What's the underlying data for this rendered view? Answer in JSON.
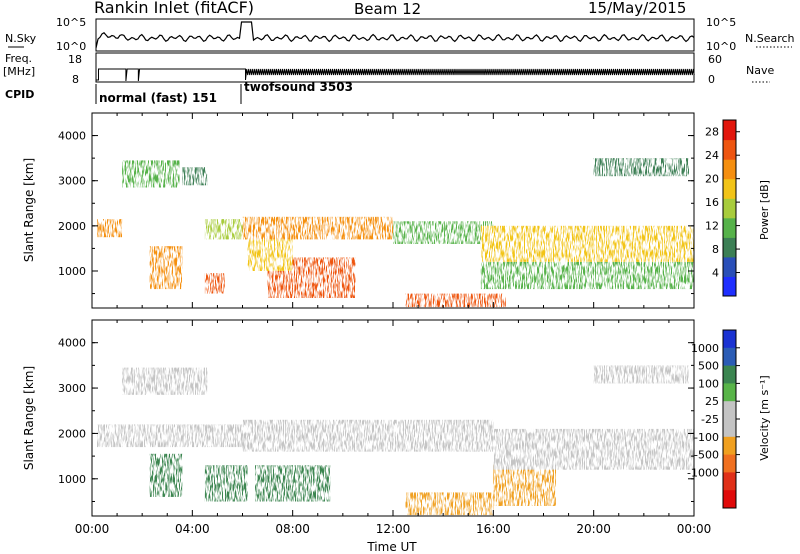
{
  "header": {
    "station": "Rankin Inlet (fitACF)",
    "beam": "Beam 12",
    "date": "15/May/2015"
  },
  "strip_labels": {
    "nsky": "N.Sky",
    "nsearch": "N.Search",
    "freq": "Freq.",
    "freq_unit": "[MHz]",
    "nave": "Nave",
    "cpid": "CPID",
    "nsky_ticks": [
      "10^5",
      "10^0"
    ],
    "nsearch_ticks": [
      "10^5",
      "10^0"
    ],
    "freq_ticks": [
      "18",
      "8"
    ],
    "nave_ticks": [
      "60",
      "0"
    ]
  },
  "modes": [
    {
      "name": "normal (fast) 151",
      "start_hour": 0
    },
    {
      "name": "twofsound 3503",
      "start_hour": 6
    }
  ],
  "colors": {
    "power_scale": [
      "#1f2fff",
      "#2a4fb8",
      "#3c7f55",
      "#56b24a",
      "#a8cc3c",
      "#f2c418",
      "#f58f10",
      "#ee5510",
      "#e2160c"
    ],
    "velocity_scale": [
      "#1a32d2",
      "#2b5cb5",
      "#3b8550",
      "#58b448",
      "#c4c4c4",
      "#c4c4c4",
      "#f0a020",
      "#f07020",
      "#e03018",
      "#e00a0a"
    ],
    "accent_black": "#000000"
  },
  "chart_data": [
    {
      "type": "heatmap",
      "panel": "power",
      "xlabel": "",
      "ylabel": "Slant Range [km]",
      "xlim": [
        0,
        24
      ],
      "ylim": [
        180,
        4500
      ],
      "yticks": [
        "1000",
        "2000",
        "3000",
        "4000"
      ],
      "colorbar_label": "Power [dB]",
      "colorbar_ticks": [
        "4",
        "8",
        "12",
        "16",
        "20",
        "24",
        "28"
      ],
      "colorbar_range": [
        0,
        30
      ],
      "bands": [
        {
          "x": [
            0.2,
            1.2
          ],
          "y": [
            1750,
            2150
          ],
          "value": 20
        },
        {
          "x": [
            2.3,
            3.6
          ],
          "y": [
            600,
            1550
          ],
          "value": 22
        },
        {
          "x": [
            1.2,
            3.5
          ],
          "y": [
            2850,
            3450
          ],
          "value": 10
        },
        {
          "x": [
            3.6,
            4.6
          ],
          "y": [
            2900,
            3300
          ],
          "value": 9
        },
        {
          "x": [
            4.5,
            6.2
          ],
          "y": [
            1700,
            2150
          ],
          "value": 14
        },
        {
          "x": [
            4.5,
            5.3
          ],
          "y": [
            500,
            950
          ],
          "value": 26
        },
        {
          "x": [
            6.0,
            12.0
          ],
          "y": [
            1700,
            2200
          ],
          "value": 21
        },
        {
          "x": [
            7.0,
            10.5
          ],
          "y": [
            400,
            1300
          ],
          "value": 25
        },
        {
          "x": [
            6.2,
            8.0
          ],
          "y": [
            1000,
            1700
          ],
          "value": 18
        },
        {
          "x": [
            12.0,
            16.0
          ],
          "y": [
            1600,
            2100
          ],
          "value": 10
        },
        {
          "x": [
            12.5,
            16.5
          ],
          "y": [
            200,
            500
          ],
          "value": 26
        },
        {
          "x": [
            15.5,
            24.0
          ],
          "y": [
            1200,
            2000
          ],
          "value": 19
        },
        {
          "x": [
            15.5,
            24.0
          ],
          "y": [
            600,
            1200
          ],
          "value": 11
        },
        {
          "x": [
            20.0,
            23.8
          ],
          "y": [
            3100,
            3500
          ],
          "value": 9
        }
      ]
    },
    {
      "type": "heatmap",
      "panel": "velocity",
      "xlabel": "Time UT",
      "ylabel": "Slant Range [km]",
      "xlim": [
        0,
        24
      ],
      "ylim": [
        180,
        4500
      ],
      "xticks": [
        "00:00",
        "04:00",
        "08:00",
        "12:00",
        "16:00",
        "20:00",
        "00:00"
      ],
      "yticks": [
        "1000",
        "2000",
        "3000",
        "4000"
      ],
      "colorbar_label": "Velocity [m s⁻¹]",
      "colorbar_ticks": [
        "1000",
        "500",
        "100",
        "25",
        "-25",
        "-100",
        "-500",
        "-1000"
      ],
      "bands": [
        {
          "x": [
            0.2,
            6.2
          ],
          "y": [
            1700,
            2200
          ],
          "value": 0
        },
        {
          "x": [
            1.2,
            4.6
          ],
          "y": [
            2850,
            3450
          ],
          "value": 0
        },
        {
          "x": [
            2.3,
            3.6
          ],
          "y": [
            600,
            1550
          ],
          "value": 300
        },
        {
          "x": [
            4.5,
            6.2
          ],
          "y": [
            500,
            1300
          ],
          "value": 300
        },
        {
          "x": [
            6.0,
            16.0
          ],
          "y": [
            1600,
            2300
          ],
          "value": 0
        },
        {
          "x": [
            6.5,
            9.5
          ],
          "y": [
            500,
            1300
          ],
          "value": 350
        },
        {
          "x": [
            12.5,
            16.0
          ],
          "y": [
            200,
            700
          ],
          "value": -300
        },
        {
          "x": [
            16.0,
            18.5
          ],
          "y": [
            400,
            1500
          ],
          "value": -350
        },
        {
          "x": [
            16.0,
            24.0
          ],
          "y": [
            1200,
            2100
          ],
          "value": 0
        },
        {
          "x": [
            20.0,
            23.8
          ],
          "y": [
            3100,
            3500
          ],
          "value": 0
        }
      ]
    }
  ]
}
